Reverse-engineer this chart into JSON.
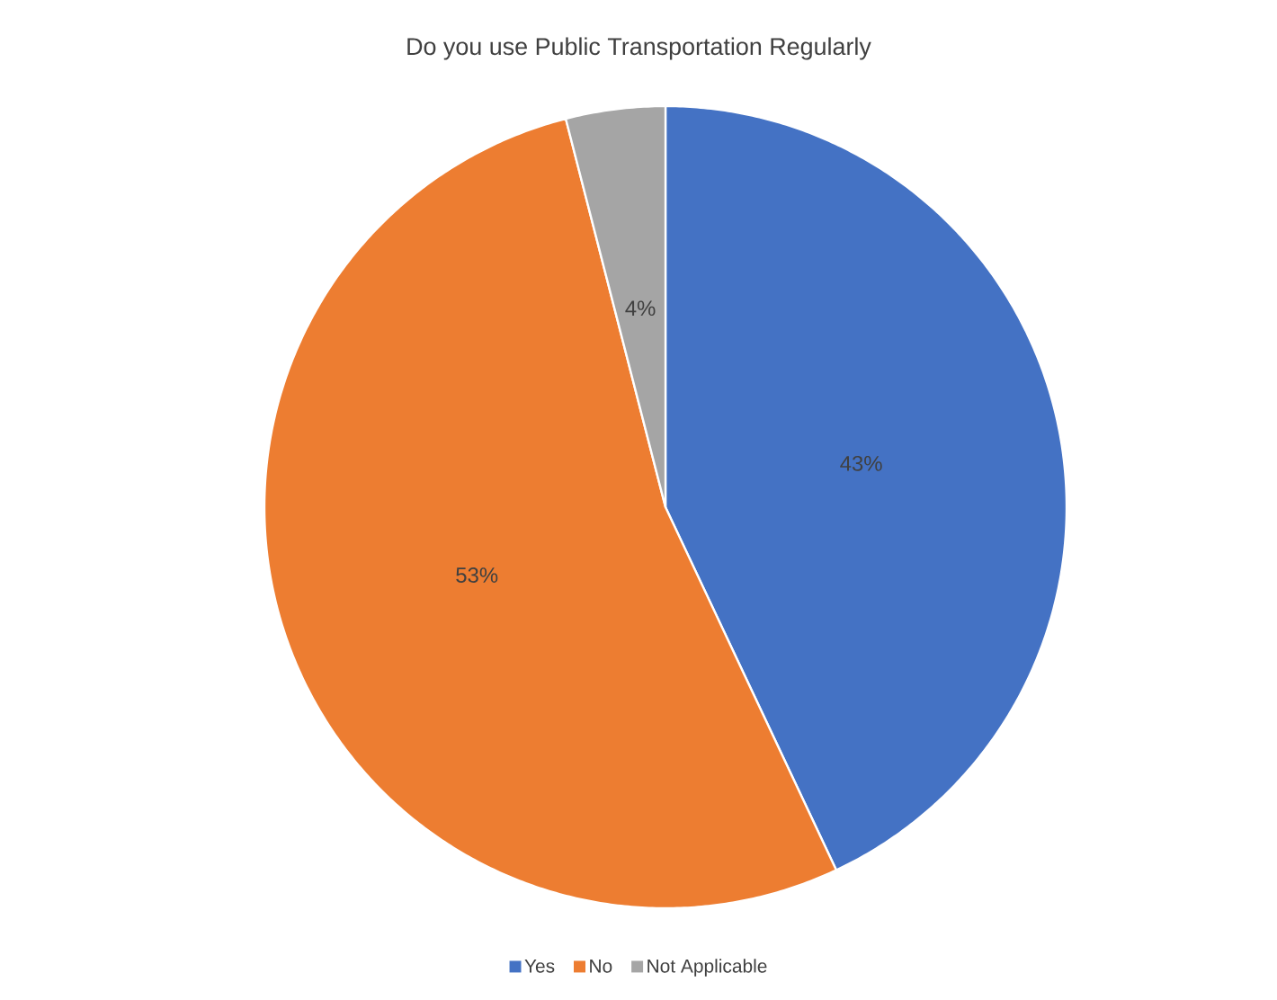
{
  "chart_data": {
    "type": "pie",
    "title": "Do you use Public Transportation Regularly",
    "categories": [
      "Yes",
      "No",
      "Not Applicable"
    ],
    "values": [
      43,
      53,
      4
    ],
    "colors": [
      "#4472c4",
      "#ed7d31",
      "#a5a5a5"
    ],
    "value_labels": [
      "43%",
      "53%",
      "4%"
    ],
    "legend": "bottom"
  }
}
